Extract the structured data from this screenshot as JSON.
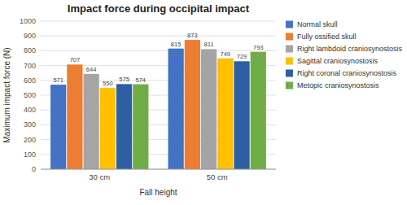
{
  "chart_data": {
    "type": "bar",
    "title": "Impact force during occipital impact",
    "xlabel": "Fall height",
    "ylabel": "Maximum impact force (N)",
    "categories": [
      "30 cm",
      "50 cm"
    ],
    "series": [
      {
        "name": "Normal skull",
        "color": "#4472C4",
        "values": [
          571,
          815
        ]
      },
      {
        "name": "Fully ossified skull",
        "color": "#ED7D31",
        "values": [
          707,
          873
        ]
      },
      {
        "name": "Right lambdoid craniosynostosis",
        "color": "#A5A5A5",
        "values": [
          644,
          811
        ]
      },
      {
        "name": "Sagittal craniosynostosis",
        "color": "#FFC000",
        "values": [
          550,
          749
        ]
      },
      {
        "name": "Right coronal craniosynostosis",
        "color": "#2E5FA3",
        "values": [
          575,
          729
        ]
      },
      {
        "name": "Metopic craniosynostosis",
        "color": "#70AD47",
        "values": [
          574,
          793
        ]
      }
    ],
    "ylim": [
      0,
      1000
    ],
    "yticks": [
      0,
      100,
      200,
      300,
      400,
      500,
      600,
      700,
      800,
      900,
      1000
    ],
    "grid": true,
    "legend": "right",
    "data_labels": true
  }
}
